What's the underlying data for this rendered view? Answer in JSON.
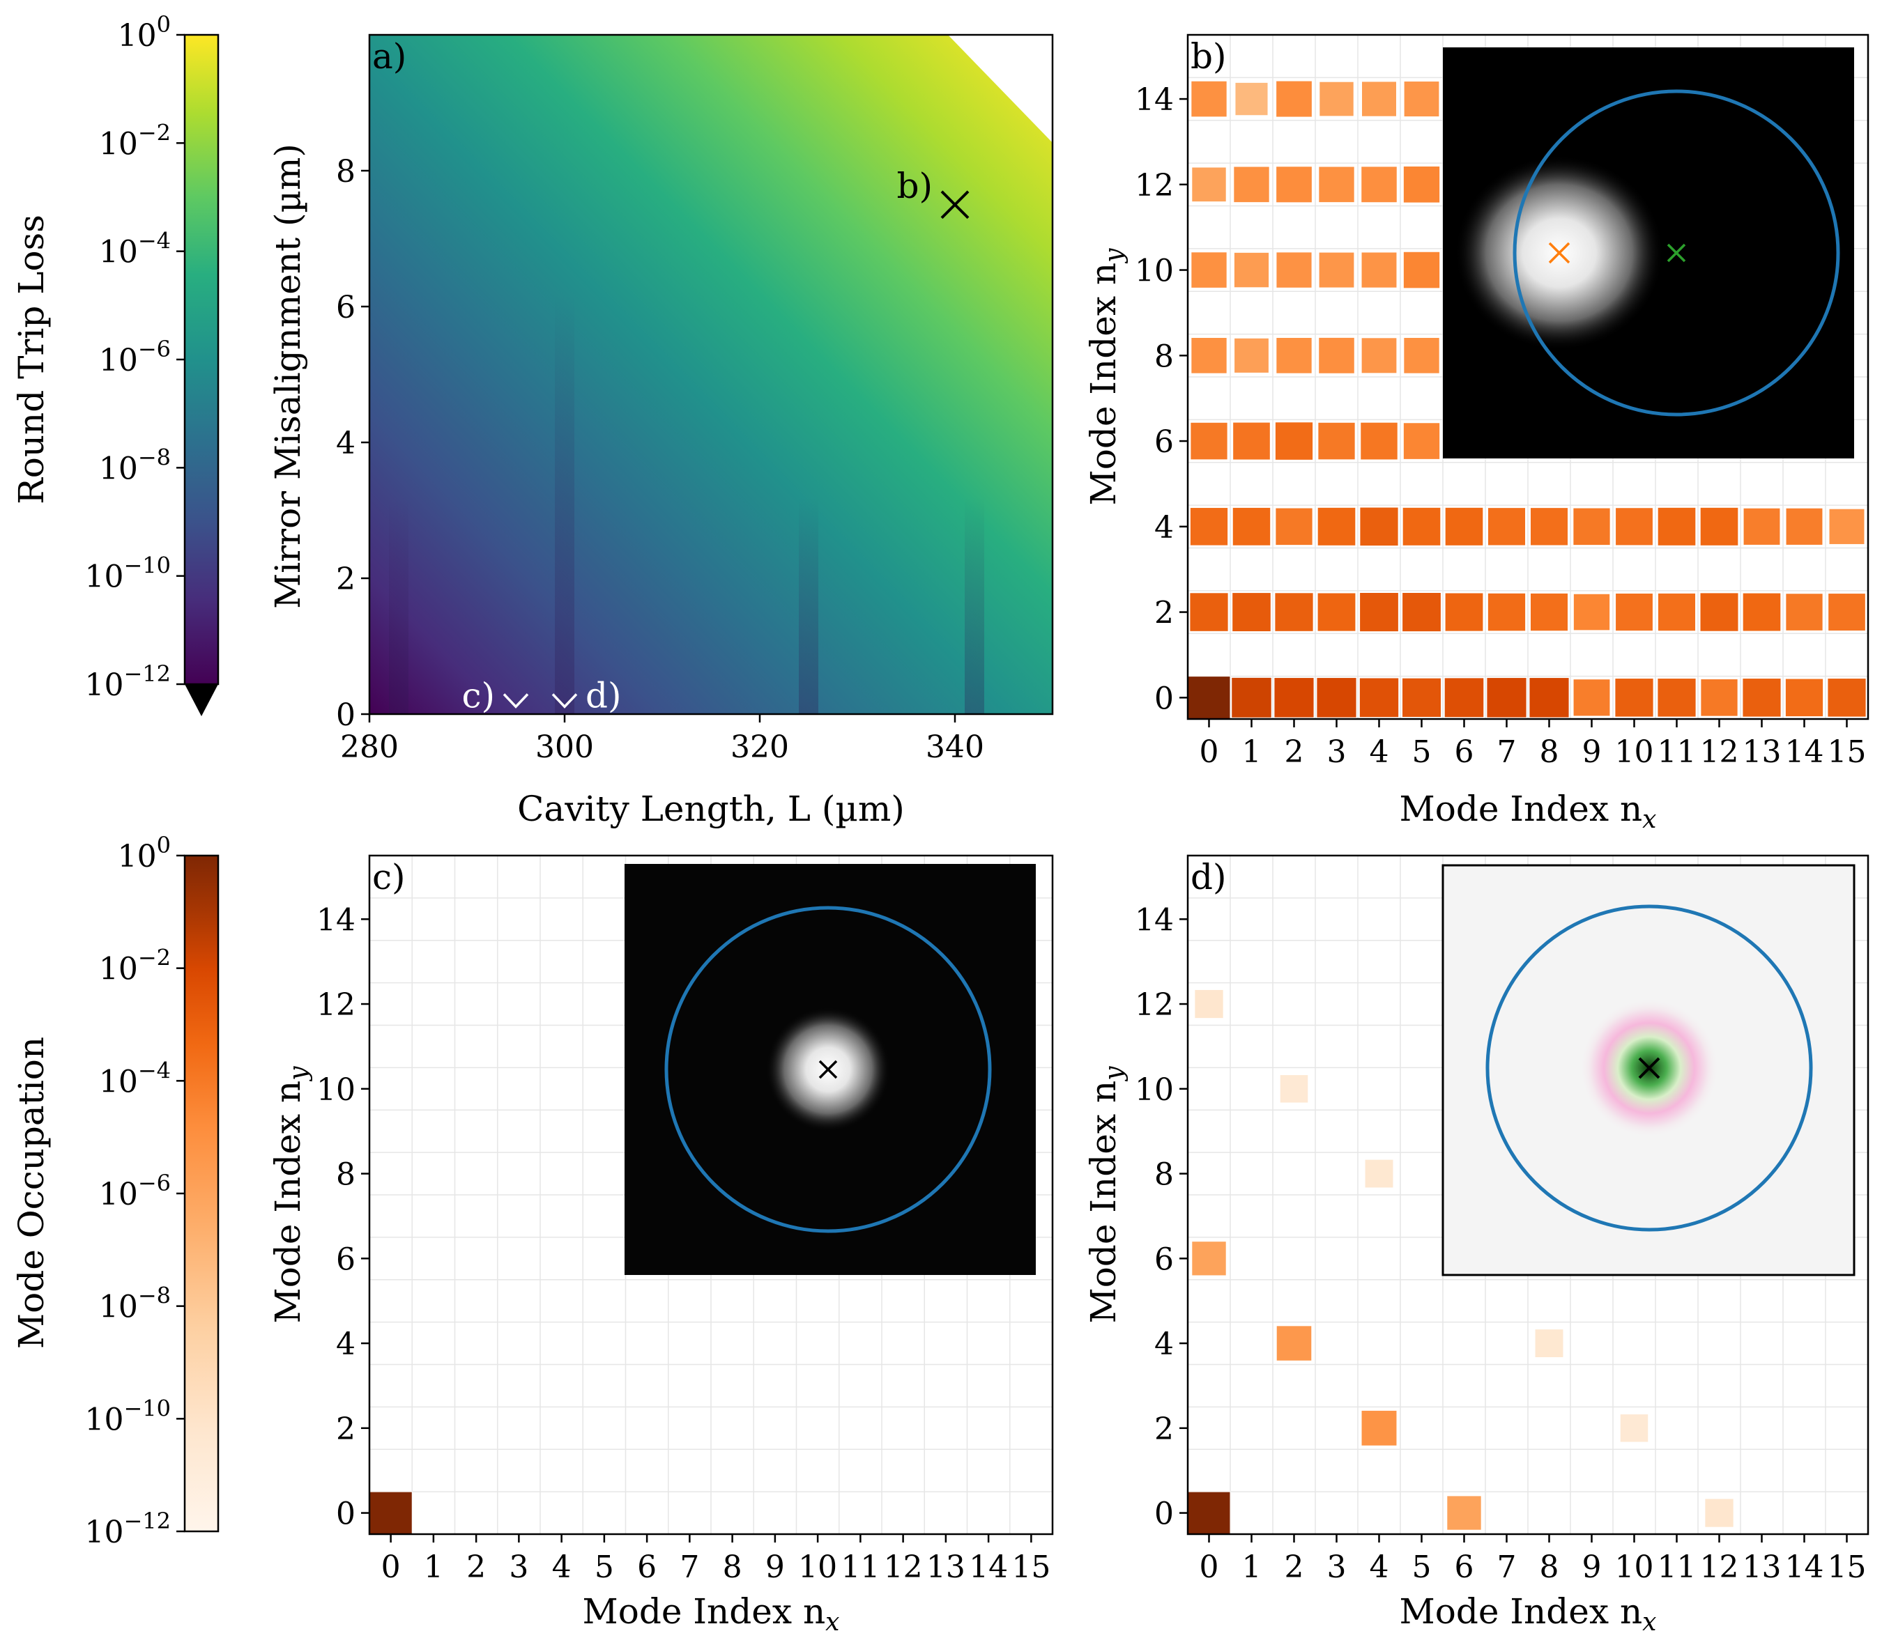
{
  "chart_data": [
    {
      "panel": "a",
      "type": "heatmap",
      "panel_label": "a)",
      "xlabel": "Cavity Length, L (µm)",
      "ylabel": "Mirror Misalignment (µm)",
      "xlim": [
        280,
        350
      ],
      "ylim": [
        0,
        10
      ],
      "xticks": [
        "280",
        "300",
        "320",
        "340"
      ],
      "yticks": [
        "0",
        "2",
        "4",
        "6",
        "8"
      ],
      "colorbar": {
        "label": "Round Trip Loss",
        "scale": "log",
        "colormap": "viridis",
        "range": [
          1e-12,
          1
        ],
        "ticks": [
          {
            "base": "10",
            "exp": "0"
          },
          {
            "base": "10",
            "exp": "−2"
          },
          {
            "base": "10",
            "exp": "−4"
          },
          {
            "base": "10",
            "exp": "−6"
          },
          {
            "base": "10",
            "exp": "−8"
          },
          {
            "base": "10",
            "exp": "−10"
          },
          {
            "base": "10",
            "exp": "−12"
          }
        ],
        "extend": "min"
      },
      "resonance_lines_L": [
        283,
        300,
        325,
        342
      ],
      "markers": [
        {
          "label": "b)",
          "L": 340,
          "misalignment": 7.5,
          "symbol": "x"
        },
        {
          "label": "c)",
          "L": 295,
          "misalignment": 0.15,
          "symbol": "v"
        },
        {
          "label": "d)",
          "L": 300,
          "misalignment": 0.15,
          "symbol": "v"
        }
      ]
    },
    {
      "panel": "b",
      "type": "heatmap",
      "panel_label": "b)",
      "xlabel": "Mode Index n",
      "xlabel_sub": "x",
      "ylabel": "Mode Index n",
      "ylabel_sub": "y",
      "xticks": [
        "0",
        "1",
        "2",
        "3",
        "4",
        "5",
        "6",
        "7",
        "8",
        "9",
        "10",
        "11",
        "12",
        "13",
        "14",
        "15"
      ],
      "yticks": [
        "0",
        "2",
        "4",
        "6",
        "8",
        "10",
        "12",
        "14"
      ],
      "note": "occupation shown as log10 value; only even ny rows populated",
      "rows": [
        {
          "ny": 0,
          "log10": [
            0,
            -1.8,
            -2,
            -2,
            -2.4,
            -2.6,
            -2.3,
            -2,
            -2,
            -4.2,
            -3,
            -3,
            -4,
            -3,
            -3.5,
            -3
          ]
        },
        {
          "ny": 2,
          "log10": [
            -3,
            -2.8,
            -3,
            -3.2,
            -2.7,
            -2.7,
            -3.2,
            -3.5,
            -3.6,
            -4.5,
            -3.7,
            -3.6,
            -3.1,
            -3.3,
            -4,
            -3.8
          ]
        },
        {
          "ny": 4,
          "log10": [
            -3.5,
            -3.4,
            -4,
            -3.3,
            -3,
            -3.3,
            -3.3,
            -3.6,
            -3.6,
            -4,
            -3.7,
            -3.3,
            -3.3,
            -4.2,
            -4.2,
            -5.2
          ]
        },
        {
          "ny": 6,
          "log10": [
            -4,
            -3.8,
            -3.5,
            -4,
            -3.9,
            -4.5
          ]
        },
        {
          "ny": 8,
          "log10": [
            -5,
            -5.8,
            -5,
            -4.9,
            -5.3,
            -5
          ]
        },
        {
          "ny": 10,
          "log10": [
            -5,
            -5.6,
            -5.1,
            -5.3,
            -5.2,
            -4.5
          ]
        },
        {
          "ny": 12,
          "log10": [
            -6,
            -5,
            -4.8,
            -5,
            -4.9,
            -4.5
          ]
        },
        {
          "ny": 14,
          "log10": [
            -5,
            -7.2,
            -4.8,
            -6,
            -5.7,
            -5.3
          ]
        }
      ]
    },
    {
      "panel": "c",
      "type": "heatmap",
      "panel_label": "c)",
      "xlabel": "Mode Index n",
      "xlabel_sub": "x",
      "ylabel": "Mode Index n",
      "ylabel_sub": "y",
      "xticks": [
        "0",
        "1",
        "2",
        "3",
        "4",
        "5",
        "6",
        "7",
        "8",
        "9",
        "10",
        "11",
        "12",
        "13",
        "14",
        "15"
      ],
      "yticks": [
        "0",
        "2",
        "4",
        "6",
        "8",
        "10",
        "12",
        "14"
      ],
      "colorbar": {
        "label": "Mode Occupation",
        "scale": "log",
        "colormap": "Oranges",
        "range": [
          1e-12,
          1
        ],
        "ticks": [
          {
            "base": "10",
            "exp": "0"
          },
          {
            "base": "10",
            "exp": "−2"
          },
          {
            "base": "10",
            "exp": "−4"
          },
          {
            "base": "10",
            "exp": "−6"
          },
          {
            "base": "10",
            "exp": "−8"
          },
          {
            "base": "10",
            "exp": "−10"
          },
          {
            "base": "10",
            "exp": "−12"
          }
        ]
      },
      "cells": [
        {
          "nx": 0,
          "ny": 0,
          "log10": 0
        }
      ]
    },
    {
      "panel": "d",
      "type": "heatmap",
      "panel_label": "d)",
      "xlabel": "Mode Index n",
      "xlabel_sub": "x",
      "ylabel": "Mode Index n",
      "ylabel_sub": "y",
      "xticks": [
        "0",
        "1",
        "2",
        "3",
        "4",
        "5",
        "6",
        "7",
        "8",
        "9",
        "10",
        "11",
        "12",
        "13",
        "14",
        "15"
      ],
      "yticks": [
        "0",
        "2",
        "4",
        "6",
        "8",
        "10",
        "12",
        "14"
      ],
      "cells": [
        {
          "nx": 0,
          "ny": 0,
          "log10": 0
        },
        {
          "nx": 0,
          "ny": 6,
          "log10": -6
        },
        {
          "nx": 2,
          "ny": 4,
          "log10": -5.4
        },
        {
          "nx": 4,
          "ny": 2,
          "log10": -5.2
        },
        {
          "nx": 6,
          "ny": 0,
          "log10": -6
        },
        {
          "nx": 0,
          "ny": 12,
          "log10": -10.2
        },
        {
          "nx": 2,
          "ny": 10,
          "log10": -10.6
        },
        {
          "nx": 4,
          "ny": 8,
          "log10": -10.4
        },
        {
          "nx": 8,
          "ny": 4,
          "log10": -10.4
        },
        {
          "nx": 10,
          "ny": 2,
          "log10": -10.6
        },
        {
          "nx": 12,
          "ny": 0,
          "log10": -10.2
        }
      ]
    }
  ]
}
